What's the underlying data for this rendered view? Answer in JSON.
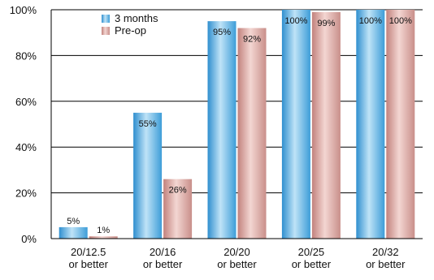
{
  "chart_data": {
    "type": "bar",
    "categories": [
      [
        "20/12.5",
        "or better"
      ],
      [
        "20/16",
        "or better"
      ],
      [
        "20/20",
        "or better"
      ],
      [
        "20/25",
        "or better"
      ],
      [
        "20/32",
        "or better"
      ]
    ],
    "series": [
      {
        "name": "3 months",
        "values": [
          5,
          55,
          95,
          100,
          100
        ],
        "labels": [
          "5%",
          "55%",
          "95%",
          "100%",
          "100%"
        ],
        "color": "#4aa8de"
      },
      {
        "name": "Pre-op",
        "values": [
          1,
          26,
          92,
          99,
          100
        ],
        "labels": [
          "1%",
          "26%",
          "92%",
          "99%",
          "100%"
        ],
        "color": "#d49a95"
      }
    ],
    "y_ticks": [
      "0%",
      "20%",
      "40%",
      "60%",
      "80%",
      "100%"
    ],
    "ylim": [
      0,
      100
    ],
    "grid": true,
    "legend": "top-left"
  }
}
